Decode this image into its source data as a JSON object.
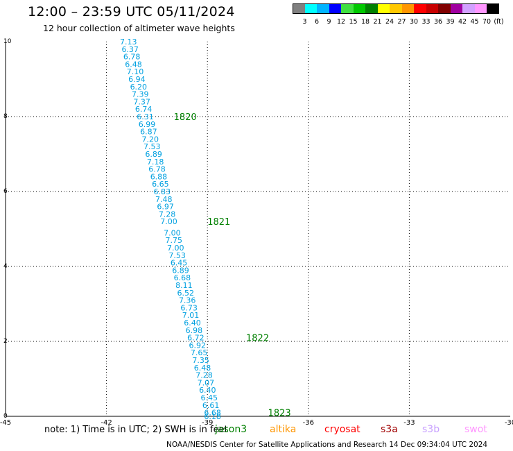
{
  "header": {
    "title": "12:00 – 23:59 UTC 05/11/2024",
    "subtitle": "12 hour collection of altimeter wave heights"
  },
  "colorbar": {
    "unit": "(ft)",
    "ticks": [
      "3",
      "6",
      "9",
      "12",
      "15",
      "18",
      "21",
      "24",
      "27",
      "30",
      "33",
      "36",
      "39",
      "42",
      "45",
      "70"
    ],
    "colors": [
      "#808080",
      "#00ffff",
      "#00b4ff",
      "#0000ff",
      "#40e040",
      "#00c800",
      "#008000",
      "#ffff00",
      "#ffc800",
      "#ff9600",
      "#ff0000",
      "#c80000",
      "#800000",
      "#a000a0",
      "#d2a0ff",
      "#ff96ff",
      "#000000"
    ]
  },
  "axes": {
    "x_ticks": [
      "-45",
      "-42",
      "-39",
      "-36",
      "-33",
      "-30"
    ],
    "y_ticks": [
      "10",
      "8",
      "6",
      "4",
      "2",
      "0"
    ],
    "xlim": [
      -45,
      -30
    ],
    "ylim": [
      0,
      10
    ]
  },
  "map_data": {
    "wave_color": "#00a0e0",
    "time_color": "#008000",
    "track": [
      {
        "lon": -41.6,
        "lat": 10.0,
        "label": "7.13"
      },
      {
        "lon": -41.55,
        "lat": 9.8,
        "label": "6.37"
      },
      {
        "lon": -41.5,
        "lat": 9.6,
        "label": "6.78"
      },
      {
        "lon": -41.45,
        "lat": 9.4,
        "label": "6.48"
      },
      {
        "lon": -41.4,
        "lat": 9.2,
        "label": "7.10"
      },
      {
        "lon": -41.35,
        "lat": 9.0,
        "label": "6.94"
      },
      {
        "lon": -41.3,
        "lat": 8.8,
        "label": "6.20"
      },
      {
        "lon": -41.25,
        "lat": 8.6,
        "label": "7.39"
      },
      {
        "lon": -41.2,
        "lat": 8.4,
        "label": "7.37"
      },
      {
        "lon": -41.15,
        "lat": 8.2,
        "label": "6.74"
      },
      {
        "lon": -41.1,
        "lat": 8.0,
        "label": "6.31"
      },
      {
        "lon": -41.05,
        "lat": 7.8,
        "label": "6.99"
      },
      {
        "lon": -41.0,
        "lat": 7.6,
        "label": "6.87"
      },
      {
        "lon": -40.95,
        "lat": 7.4,
        "label": "7.20"
      },
      {
        "lon": -40.9,
        "lat": 7.2,
        "label": "7.53"
      },
      {
        "lon": -40.85,
        "lat": 7.0,
        "label": "6.89"
      },
      {
        "lon": -40.8,
        "lat": 6.8,
        "label": "7.18"
      },
      {
        "lon": -40.75,
        "lat": 6.6,
        "label": "6.78"
      },
      {
        "lon": -40.7,
        "lat": 6.4,
        "label": "6.88"
      },
      {
        "lon": -40.65,
        "lat": 6.2,
        "label": "6.65"
      },
      {
        "lon": -40.6,
        "lat": 6.0,
        "label": "6.83"
      },
      {
        "lon": -40.55,
        "lat": 5.8,
        "label": "7.48"
      },
      {
        "lon": -40.5,
        "lat": 5.6,
        "label": "6.97"
      },
      {
        "lon": -40.45,
        "lat": 5.4,
        "label": "7.28"
      },
      {
        "lon": -40.4,
        "lat": 5.2,
        "label": "7.00"
      },
      {
        "lon": -40.3,
        "lat": 4.9,
        "label": "7.00"
      },
      {
        "lon": -40.25,
        "lat": 4.7,
        "label": "7.75"
      },
      {
        "lon": -40.2,
        "lat": 4.5,
        "label": "7.00"
      },
      {
        "lon": -40.15,
        "lat": 4.3,
        "label": "7.53"
      },
      {
        "lon": -40.1,
        "lat": 4.1,
        "label": "6.45"
      },
      {
        "lon": -40.05,
        "lat": 3.9,
        "label": "6.89"
      },
      {
        "lon": -40.0,
        "lat": 3.7,
        "label": "6.68"
      },
      {
        "lon": -39.95,
        "lat": 3.5,
        "label": "8.11"
      },
      {
        "lon": -39.9,
        "lat": 3.3,
        "label": "6.52"
      },
      {
        "lon": -39.85,
        "lat": 3.1,
        "label": "7.36"
      },
      {
        "lon": -39.8,
        "lat": 2.9,
        "label": "6.73"
      },
      {
        "lon": -39.75,
        "lat": 2.7,
        "label": "7.01"
      },
      {
        "lon": -39.7,
        "lat": 2.5,
        "label": "6.40"
      },
      {
        "lon": -39.65,
        "lat": 2.3,
        "label": "6.98"
      },
      {
        "lon": -39.6,
        "lat": 2.1,
        "label": "6.72"
      },
      {
        "lon": -39.55,
        "lat": 1.9,
        "label": "6.92"
      },
      {
        "lon": -39.5,
        "lat": 1.7,
        "label": "7.65"
      },
      {
        "lon": -39.45,
        "lat": 1.5,
        "label": "7.35"
      },
      {
        "lon": -39.4,
        "lat": 1.3,
        "label": "6.48"
      },
      {
        "lon": -39.35,
        "lat": 1.1,
        "label": "7.28"
      },
      {
        "lon": -39.3,
        "lat": 0.9,
        "label": "7.07"
      },
      {
        "lon": -39.25,
        "lat": 0.7,
        "label": "6.40"
      },
      {
        "lon": -39.2,
        "lat": 0.5,
        "label": "6.45"
      },
      {
        "lon": -39.15,
        "lat": 0.3,
        "label": "6.61"
      },
      {
        "lon": -39.1,
        "lat": 0.1,
        "label": "6.68"
      },
      {
        "lon": -39.1,
        "lat": 0.0,
        "label": "6.18"
      }
    ],
    "times": [
      {
        "lon": -40.0,
        "lat": 8.0,
        "label": "1820"
      },
      {
        "lon": -39.0,
        "lat": 5.2,
        "label": "1821"
      },
      {
        "lon": -37.85,
        "lat": 2.1,
        "label": "1822"
      },
      {
        "lon": -37.2,
        "lat": 0.1,
        "label": "1823"
      }
    ]
  },
  "note": "note:  1) Time is in UTC; 2) SWH is in feet",
  "satellites": [
    {
      "name": "jason3",
      "color": "#008000"
    },
    {
      "name": "altika",
      "color": "#ff9600"
    },
    {
      "name": "cryosat",
      "color": "#ff0000"
    },
    {
      "name": "s3a",
      "color": "#a00000"
    },
    {
      "name": "s3b",
      "color": "#c8a0ff"
    },
    {
      "name": "swot",
      "color": "#ff96ff"
    }
  ],
  "footer": "NOAA/NESDIS Center for Satellite Applications and Research     14 Dec 09:34:04 UTC 2024"
}
